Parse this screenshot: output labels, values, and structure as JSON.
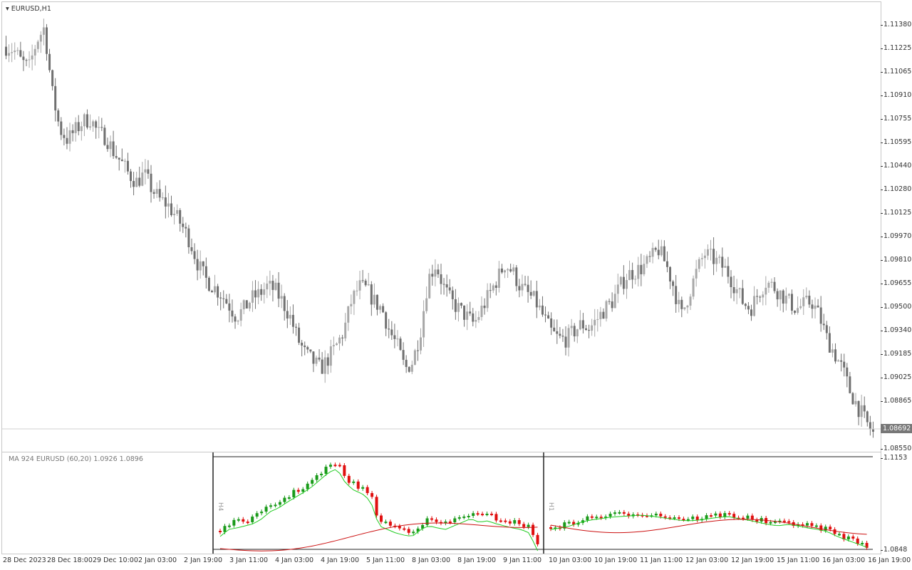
{
  "window": {
    "symbol_title": "EURUSD,H1",
    "current_price": "1.08692"
  },
  "price_scale": [
    "1.11380",
    "1.11225",
    "1.11065",
    "1.10910",
    "1.10755",
    "1.10595",
    "1.10440",
    "1.10280",
    "1.10125",
    "1.09970",
    "1.09810",
    "1.09655",
    "1.09500",
    "1.09340",
    "1.09185",
    "1.09025",
    "1.08865",
    "1.08550"
  ],
  "time_scale": [
    "28 Dec 2023",
    "28 Dec 18:00",
    "29 Dec 10:00",
    "2 Jan 03:00",
    "2 Jan 19:00",
    "3 Jan 11:00",
    "4 Jan 03:00",
    "4 Jan 19:00",
    "5 Jan 11:00",
    "8 Jan 03:00",
    "8 Jan 19:00",
    "9 Jan 11:00",
    "10 Jan 03:00",
    "10 Jan 19:00",
    "11 Jan 11:00",
    "12 Jan 03:00",
    "12 Jan 19:00",
    "15 Jan 11:00",
    "16 Jan 03:00",
    "16 Jan 19:00"
  ],
  "indicator": {
    "label": "MA 924 EURUSD (60,20) 1.0926 1.0896",
    "scale_high": "1.1153",
    "scale_low": "1.0848",
    "panel_left_tf": "H4",
    "panel_right_tf": "H1"
  },
  "colors": {
    "bull": "#a8a8a8",
    "bear": "#707070",
    "sub_bull": "#1a9a1a",
    "sub_bear": "#e01010",
    "ma_fast": "#22cc22",
    "ma_slow": "#cc1111"
  },
  "chart_data": {
    "type": "candlestick",
    "title": "EURUSD,H1",
    "ylim": [
      1.0855,
      1.1145
    ],
    "close_path": [
      1.112,
      1.1118,
      1.111,
      1.1106,
      1.1124,
      1.1133,
      1.109,
      1.1065,
      1.1058,
      1.1064,
      1.107,
      1.1072,
      1.1062,
      1.106,
      1.105,
      1.1043,
      1.1035,
      1.103,
      1.1035,
      1.1025,
      1.1018,
      1.1015,
      1.1008,
      1.1,
      1.099,
      1.0975,
      1.0965,
      1.096,
      1.0955,
      1.0948,
      1.094,
      1.0945,
      1.0952,
      1.0955,
      1.096,
      1.0958,
      1.095,
      1.094,
      1.0925,
      1.0915,
      1.091,
      1.0905,
      1.0912,
      1.092,
      1.093,
      1.095,
      1.096,
      1.0958,
      1.095,
      1.0945,
      1.093,
      1.092,
      1.0905,
      1.091,
      1.093,
      1.0965,
      1.0975,
      1.096,
      1.095,
      1.0945,
      1.094,
      1.0935,
      1.0945,
      1.0955,
      1.0965,
      1.0975,
      1.097,
      1.096,
      1.0955,
      1.095,
      1.094,
      1.093,
      1.0925,
      1.0925,
      1.093,
      1.0935,
      1.0932,
      1.0938,
      1.0945,
      1.095,
      1.096,
      1.0968,
      1.097,
      1.0973,
      1.0978,
      1.0985,
      1.0975,
      1.096,
      1.094,
      1.0955,
      1.097,
      1.0982,
      1.0979,
      1.0975,
      1.097,
      1.096,
      1.095,
      1.0945,
      1.0955,
      1.0963,
      1.096,
      1.0955,
      1.095,
      1.0945,
      1.0948,
      1.095,
      1.094,
      1.0925,
      1.0915,
      1.0905,
      1.089,
      1.088,
      1.087,
      1.0862
    ]
  }
}
